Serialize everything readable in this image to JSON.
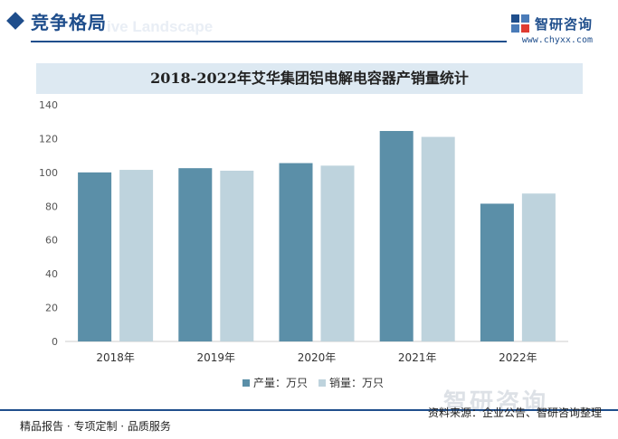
{
  "header": {
    "section_title": "竞争格局",
    "section_subtitle": "ive Landscape",
    "brand_name": "智研咨询",
    "brand_url": "www.chyxx.com"
  },
  "footer": {
    "left_text": "精品报告 · 专项定制 · 品质服务",
    "source_text": "资料来源：企业公告、智研咨询整理",
    "watermark_text": "智研咨询"
  },
  "colors": {
    "production": "#5b8fa8",
    "sales": "#bed3dd",
    "brand": "#1f4e8c"
  },
  "chart_data": {
    "type": "bar",
    "title": "2018-2022年艾华集团铝电解电容器产销量统计",
    "categories": [
      "2018年",
      "2019年",
      "2020年",
      "2021年",
      "2022年"
    ],
    "series": [
      {
        "name": "产量：万只",
        "values": [
          100,
          102.5,
          105.5,
          124.5,
          81.5
        ]
      },
      {
        "name": "销量：万只",
        "values": [
          101.5,
          101,
          104,
          121,
          87.5
        ]
      }
    ],
    "yticks": [
      "0",
      "20",
      "40",
      "60",
      "80",
      "100",
      "120",
      "140"
    ],
    "ylim": [
      0,
      140
    ],
    "xlabel": "",
    "ylabel": "",
    "grid": false,
    "legend_position": "bottom"
  }
}
